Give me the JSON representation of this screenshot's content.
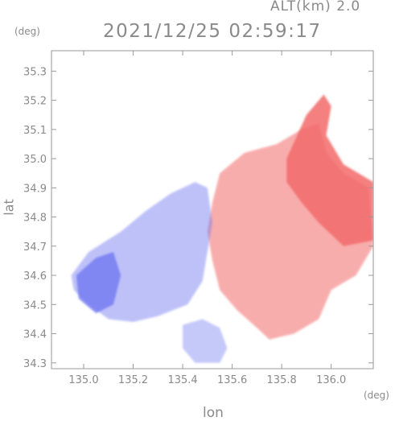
{
  "header": {
    "alt_label": "ALT(km) 2.0",
    "datetime": "2021/12/25 02:59:17",
    "y_unit": "(deg)",
    "x_unit": "(deg)"
  },
  "axes": {
    "xlabel": "lon",
    "ylabel": "lat",
    "xlim": [
      134.87,
      136.17
    ],
    "ylim": [
      34.28,
      35.37
    ],
    "xticks": [
      135.0,
      135.2,
      135.4,
      135.6,
      135.8,
      136.0
    ],
    "yticks": [
      34.3,
      34.4,
      34.5,
      34.6,
      34.7,
      34.8,
      34.9,
      35.0,
      35.1,
      35.2,
      35.3
    ],
    "xtick_labels": [
      "135.0",
      "135.2",
      "135.4",
      "135.6",
      "135.8",
      "136.0"
    ],
    "ytick_labels": [
      "34.3",
      "34.4",
      "34.5",
      "34.6",
      "34.7",
      "34.8",
      "34.9",
      "35.0",
      "35.1",
      "35.2",
      "35.3"
    ]
  },
  "chart_data": {
    "type": "heatmap",
    "colors": {
      "approaching": "#6f78f0",
      "receding": "#f26a6a",
      "frame": "#9a9a9a"
    },
    "regions": [
      {
        "kind": "receding",
        "polygon": [
          [
            135.55,
            34.95
          ],
          [
            135.65,
            35.02
          ],
          [
            135.78,
            35.05
          ],
          [
            135.88,
            35.1
          ],
          [
            135.95,
            35.12
          ],
          [
            135.98,
            35.02
          ],
          [
            136.05,
            34.95
          ],
          [
            136.15,
            34.9
          ],
          [
            136.17,
            34.7
          ],
          [
            136.1,
            34.6
          ],
          [
            136.0,
            34.55
          ],
          [
            135.95,
            34.45
          ],
          [
            135.85,
            34.4
          ],
          [
            135.75,
            34.38
          ],
          [
            135.7,
            34.42
          ],
          [
            135.62,
            34.48
          ],
          [
            135.55,
            34.55
          ],
          [
            135.52,
            34.65
          ],
          [
            135.5,
            34.75
          ],
          [
            135.52,
            34.85
          ]
        ],
        "intensity": 0.55
      },
      {
        "kind": "receding",
        "polygon": [
          [
            135.82,
            35.0
          ],
          [
            135.9,
            35.15
          ],
          [
            135.97,
            35.22
          ],
          [
            136.0,
            35.18
          ],
          [
            135.98,
            35.08
          ],
          [
            136.05,
            34.98
          ],
          [
            136.17,
            34.92
          ],
          [
            136.17,
            34.72
          ],
          [
            136.05,
            34.7
          ],
          [
            135.95,
            34.78
          ],
          [
            135.88,
            34.85
          ],
          [
            135.82,
            34.92
          ]
        ],
        "intensity": 0.85
      },
      {
        "kind": "approaching",
        "polygon": [
          [
            134.95,
            34.6
          ],
          [
            135.02,
            34.68
          ],
          [
            135.15,
            34.75
          ],
          [
            135.25,
            34.82
          ],
          [
            135.35,
            34.88
          ],
          [
            135.45,
            34.92
          ],
          [
            135.5,
            34.9
          ],
          [
            135.52,
            34.78
          ],
          [
            135.5,
            34.68
          ],
          [
            135.48,
            34.58
          ],
          [
            135.42,
            34.5
          ],
          [
            135.3,
            34.46
          ],
          [
            135.2,
            34.44
          ],
          [
            135.1,
            34.45
          ],
          [
            135.02,
            34.5
          ],
          [
            134.96,
            34.55
          ]
        ],
        "intensity": 0.45
      },
      {
        "kind": "approaching",
        "polygon": [
          [
            134.97,
            34.6
          ],
          [
            135.05,
            34.66
          ],
          [
            135.12,
            34.68
          ],
          [
            135.15,
            34.6
          ],
          [
            135.12,
            34.5
          ],
          [
            135.05,
            34.47
          ],
          [
            134.98,
            34.52
          ]
        ],
        "intensity": 0.8
      },
      {
        "kind": "approaching",
        "polygon": [
          [
            135.4,
            34.43
          ],
          [
            135.48,
            34.45
          ],
          [
            135.55,
            34.42
          ],
          [
            135.58,
            34.35
          ],
          [
            135.55,
            34.3
          ],
          [
            135.45,
            34.3
          ],
          [
            135.4,
            34.35
          ]
        ],
        "intensity": 0.4
      }
    ]
  }
}
